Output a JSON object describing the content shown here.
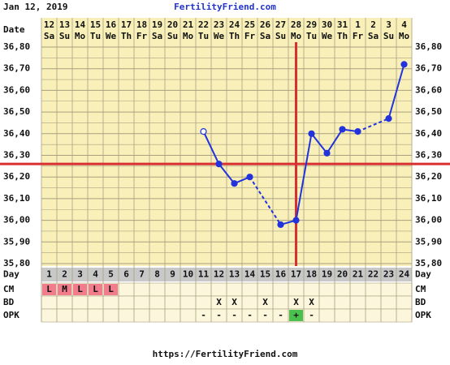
{
  "header": {
    "date": "Jan 12, 2019",
    "site": "FertilityFriend.com"
  },
  "chart_data": {
    "type": "line",
    "date_label": "Date",
    "day_label": "Day",
    "x": [
      1,
      2,
      3,
      4,
      5,
      6,
      7,
      8,
      9,
      10,
      11,
      12,
      13,
      14,
      15,
      16,
      17,
      18,
      19,
      20,
      21,
      22,
      23,
      24
    ],
    "dates": [
      "12",
      "13",
      "14",
      "15",
      "16",
      "17",
      "18",
      "19",
      "20",
      "21",
      "22",
      "23",
      "24",
      "25",
      "26",
      "27",
      "28",
      "29",
      "30",
      "31",
      "1",
      "2",
      "3",
      "4"
    ],
    "weekdays": [
      "Sa",
      "Su",
      "Mo",
      "Tu",
      "We",
      "Th",
      "Fr",
      "Sa",
      "Su",
      "Mo",
      "Tu",
      "We",
      "Th",
      "Fr",
      "Sa",
      "Su",
      "Mo",
      "Tu",
      "We",
      "Th",
      "Fr",
      "Sa",
      "Su",
      "Mo"
    ],
    "values": [
      null,
      null,
      null,
      null,
      null,
      null,
      null,
      null,
      null,
      null,
      36.41,
      36.26,
      36.17,
      36.2,
      null,
      35.98,
      36.0,
      36.4,
      36.31,
      36.42,
      36.41,
      null,
      36.47,
      36.72
    ],
    "hollow_days": [
      11
    ],
    "color": "#2233dd",
    "coverline": 36.26,
    "ovulation_day": 17,
    "marker_line_color": "#d83030",
    "ylim": [
      35.8,
      36.8
    ],
    "yticks": [
      {
        "value": 35.8,
        "label": "35,80"
      },
      {
        "value": 35.9,
        "label": "35,90"
      },
      {
        "value": 36.0,
        "label": "36,00"
      },
      {
        "value": 36.1,
        "label": "36,10"
      },
      {
        "value": 36.2,
        "label": "36,20"
      },
      {
        "value": 36.3,
        "label": "36,30"
      },
      {
        "value": 36.4,
        "label": "36,40"
      },
      {
        "value": 36.5,
        "label": "36,50"
      },
      {
        "value": 36.6,
        "label": "36,60"
      },
      {
        "value": 36.7,
        "label": "36,70"
      },
      {
        "value": 36.8,
        "label": "36,80"
      }
    ],
    "grid": true,
    "rows": [
      {
        "label": "CM",
        "cells": [
          "L",
          "M",
          "L",
          "L",
          "L",
          null,
          null,
          null,
          null,
          null,
          null,
          null,
          null,
          null,
          null,
          null,
          null,
          null,
          null,
          null,
          null,
          null,
          null,
          null
        ],
        "colors": [
          "#f07c8c",
          "#f07c8c",
          "#f07c8c",
          "#f07c8c",
          "#f07c8c",
          null,
          null,
          null,
          null,
          null,
          null,
          null,
          null,
          null,
          null,
          null,
          null,
          null,
          null,
          null,
          null,
          null,
          null,
          null
        ]
      },
      {
        "label": "BD",
        "cells": [
          null,
          null,
          null,
          null,
          null,
          null,
          null,
          null,
          null,
          null,
          null,
          "X",
          "X",
          null,
          "X",
          null,
          "X",
          "X",
          null,
          null,
          null,
          null,
          null,
          null
        ],
        "colors": [
          null,
          null,
          null,
          null,
          null,
          null,
          null,
          null,
          null,
          null,
          null,
          null,
          null,
          null,
          null,
          null,
          null,
          null,
          null,
          null,
          null,
          null,
          null,
          null
        ]
      },
      {
        "label": "OPK",
        "cells": [
          null,
          null,
          null,
          null,
          null,
          null,
          null,
          null,
          null,
          null,
          "-",
          "-",
          "-",
          "-",
          "-",
          "-",
          "+",
          "-",
          null,
          null,
          null,
          null,
          null,
          null
        ],
        "colors": [
          null,
          null,
          null,
          null,
          null,
          null,
          null,
          null,
          null,
          null,
          null,
          null,
          null,
          null,
          null,
          null,
          "#4cc04c",
          null,
          null,
          null,
          null,
          null,
          null,
          null
        ]
      }
    ]
  },
  "footer": "https://FertilityFriend.com"
}
